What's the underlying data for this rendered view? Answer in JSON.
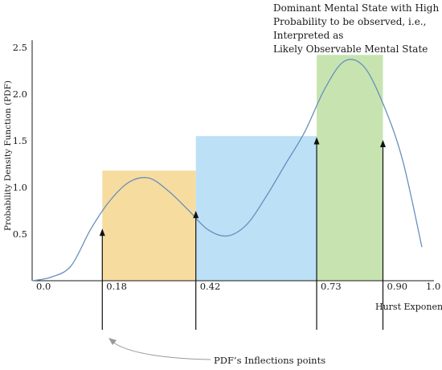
{
  "chart_data": {
    "type": "line",
    "ylabel": "Probability Density Function (PDF)",
    "xlabel": "Hurst Exponent",
    "ylim": [
      0,
      2.5
    ],
    "yticks": [
      0.5,
      1.0,
      1.5,
      2.0,
      2.5
    ],
    "ytick_labels": [
      "0.5",
      "1.0",
      "1.5",
      "2.0",
      "2.5"
    ],
    "xticks": [
      {
        "label": "0.0",
        "value": 0.0
      },
      {
        "label": "0.18",
        "value": 0.18
      },
      {
        "label": "0.42",
        "value": 0.42
      },
      {
        "label": "0.73",
        "value": 0.73
      },
      {
        "label": "0.90",
        "value": 0.9
      },
      {
        "label": "1.0",
        "value": 1.0
      }
    ],
    "series": [
      {
        "x": [
          0.0,
          0.05,
          0.1,
          0.15,
          0.2,
          0.25,
          0.3,
          0.35,
          0.4,
          0.45,
          0.5,
          0.55,
          0.6,
          0.65,
          0.7,
          0.75,
          0.8,
          0.85,
          0.9,
          0.95,
          1.0
        ],
        "y": [
          0.0,
          0.04,
          0.16,
          0.55,
          0.86,
          1.06,
          1.1,
          0.96,
          0.76,
          0.55,
          0.48,
          0.6,
          0.9,
          1.25,
          1.6,
          2.05,
          2.35,
          2.3,
          1.9,
          1.3,
          0.36
        ]
      }
    ],
    "regions": [
      {
        "x0": 0.18,
        "x1": 0.42,
        "height": 1.18,
        "color": "#f7dca0"
      },
      {
        "x0": 0.42,
        "x1": 0.73,
        "height": 1.55,
        "color": "#bce0f6"
      },
      {
        "x0": 0.73,
        "x1": 0.9,
        "height": 2.42,
        "color": "#c7e4b0"
      }
    ],
    "inflection_points": [
      {
        "x": 0.18,
        "y": 0.55
      },
      {
        "x": 0.42,
        "y": 0.74
      },
      {
        "x": 0.73,
        "y": 1.53
      },
      {
        "x": 0.9,
        "y": 1.5
      }
    ],
    "annotations": {
      "dominant_lines": [
        "Dominant Mental State with High",
        "Probability to be observed, i.e.,",
        "Interpreted as",
        "Likely Observable Mental State"
      ],
      "inflection_label": "PDF’s Inflections points"
    },
    "colors": {
      "curve": "#6a8fbd",
      "axis": "#1a1a1a"
    }
  }
}
